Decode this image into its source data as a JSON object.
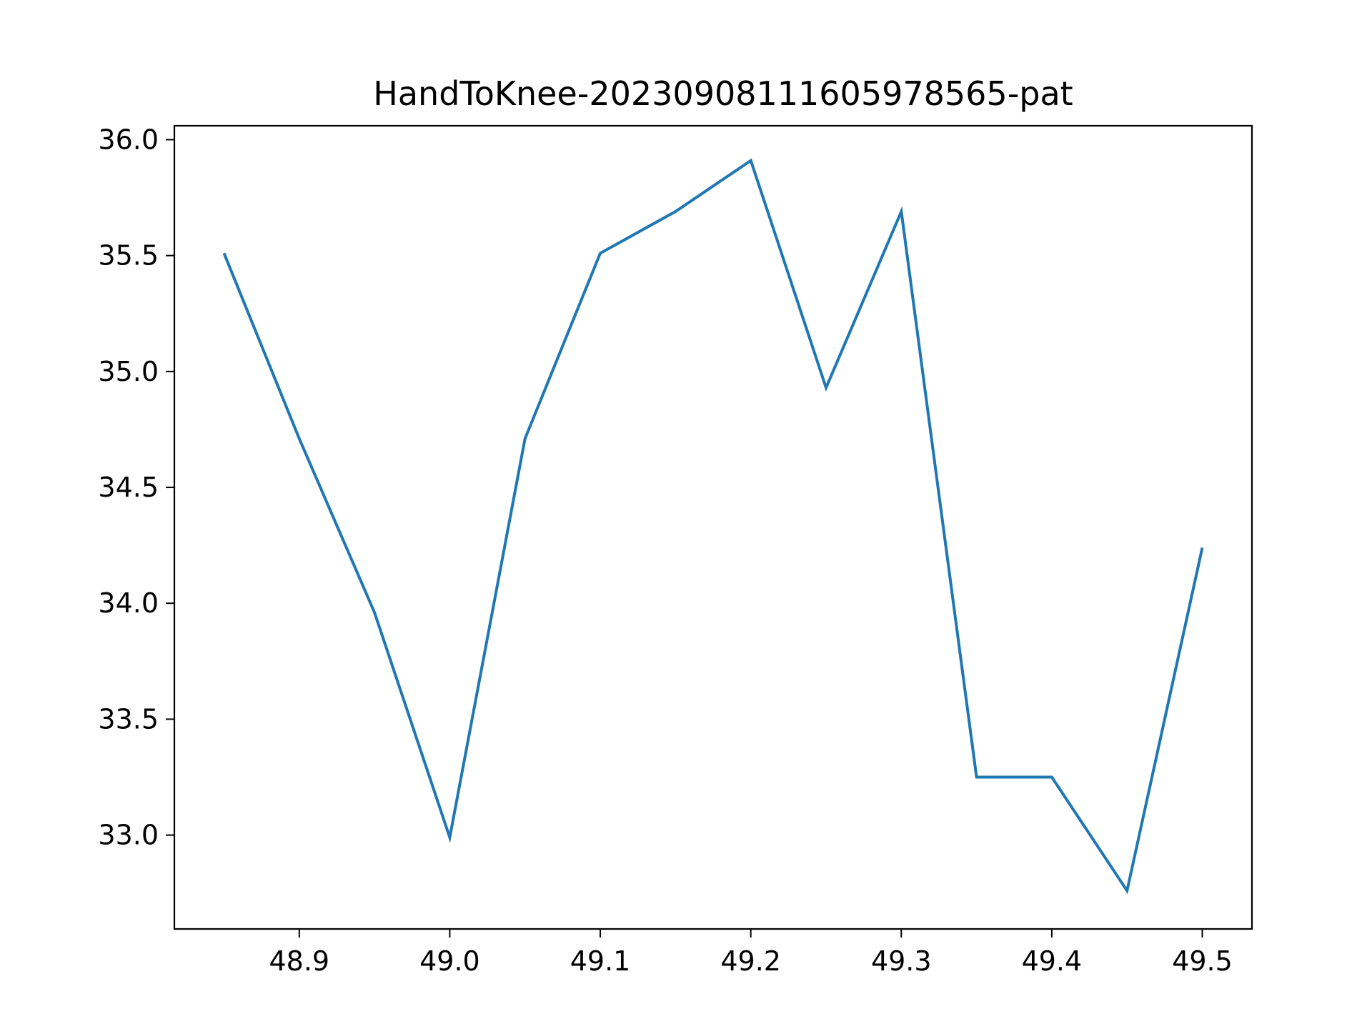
{
  "chart_data": {
    "type": "line",
    "title": "HandToKnee-20230908111605978565-pat",
    "xlabel": "",
    "ylabel": "",
    "xlim": [
      48.817,
      49.533
    ],
    "ylim": [
      32.595,
      36.06
    ],
    "x_ticks": [
      48.9,
      49.0,
      49.1,
      49.2,
      49.3,
      49.4,
      49.5
    ],
    "x_tick_labels": [
      "48.9",
      "49.0",
      "49.1",
      "49.2",
      "49.3",
      "49.4",
      "49.5"
    ],
    "y_ticks": [
      33.0,
      33.5,
      34.0,
      34.5,
      35.0,
      35.5,
      36.0
    ],
    "y_tick_labels": [
      "33.0",
      "33.5",
      "34.0",
      "34.5",
      "35.0",
      "35.5",
      "36.0"
    ],
    "grid": false,
    "series": [
      {
        "color": "#1f77b4",
        "x": [
          48.85,
          48.9,
          48.95,
          49.0,
          49.05,
          49.1,
          49.15,
          49.2,
          49.25,
          49.3,
          49.35,
          49.4,
          49.45,
          49.5
        ],
        "y": [
          35.51,
          34.71,
          33.96,
          32.99,
          34.71,
          35.51,
          35.69,
          35.91,
          34.93,
          35.69,
          33.25,
          33.25,
          32.76,
          34.24
        ]
      }
    ]
  }
}
